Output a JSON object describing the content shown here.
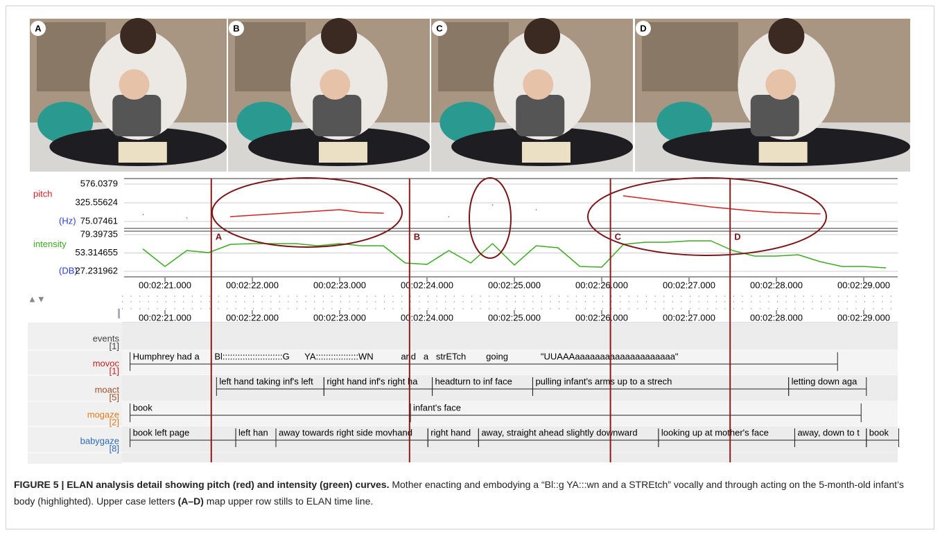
{
  "photos": [
    {
      "label": "A"
    },
    {
      "label": "B"
    },
    {
      "label": "C"
    },
    {
      "label": "D"
    }
  ],
  "timeline": {
    "xlim": [
      20.53,
      29.4
    ],
    "xticks": [
      {
        "value": 21,
        "label": "00:02:21.000"
      },
      {
        "value": 22,
        "label": "00:02:22.000"
      },
      {
        "value": 23,
        "label": "00:02:23.000"
      },
      {
        "value": 24,
        "label": "00:02:24.000"
      },
      {
        "value": 25,
        "label": "00:02:25.000"
      },
      {
        "value": 26,
        "label": "00:02:26.000"
      },
      {
        "value": 27,
        "label": "00:02:27.000"
      },
      {
        "value": 28,
        "label": "00:02:28.000"
      },
      {
        "value": 29,
        "label": "00:02:29.000"
      }
    ],
    "markers": [
      {
        "time": 21.53,
        "label": "A"
      },
      {
        "time": 23.8,
        "label": "B"
      },
      {
        "time": 26.1,
        "label": "C"
      },
      {
        "time": 27.47,
        "label": "D"
      }
    ]
  },
  "chart_data": [
    {
      "type": "line",
      "ylabel": "pitch",
      "yunit": "(Hz)",
      "color": "#d42020",
      "x": [
        20.75,
        21,
        21.25,
        21.5,
        21.75,
        22,
        22.25,
        22.5,
        22.75,
        23,
        23.25,
        23.5,
        23.75,
        24,
        24.25,
        24.5,
        24.75,
        25,
        25.25,
        25.5,
        25.75,
        26,
        26.25,
        26.5,
        26.75,
        27,
        27.25,
        27.5,
        27.75,
        28,
        28.25,
        28.5,
        28.75,
        29,
        29.25
      ],
      "values": [
        167.8,
        null,
        121.5,
        null,
        140,
        158.6,
        177,
        195.7,
        214,
        232.8,
        195.7,
        186.4,
        null,
        null,
        140,
        null,
        297.7,
        null,
        232.8,
        null,
        null,
        null,
        418.3,
        381.2,
        344,
        307,
        270,
        242,
        214,
        195.7,
        186.4,
        177,
        null,
        null,
        null
      ],
      "ylim": [
        75.07461,
        576.0379
      ],
      "yticks": [
        75.07461,
        325.55624,
        576.0379
      ],
      "grid": true
    },
    {
      "type": "line",
      "ylabel": "intensity",
      "yunit": "(DB)",
      "color": "#3aaa20",
      "x": [
        20.75,
        21,
        21.25,
        21.5,
        21.75,
        22,
        22.25,
        22.5,
        22.75,
        23,
        23.25,
        23.5,
        23.75,
        24,
        24.25,
        24.5,
        24.75,
        25,
        25.25,
        25.5,
        25.75,
        26,
        26.25,
        26.5,
        26.75,
        27,
        27.25,
        27.5,
        27.75,
        28,
        28.25,
        28.5,
        28.75,
        29,
        29.25
      ],
      "values": [
        58.7,
        34.1,
        56.8,
        53.8,
        65.6,
        66.6,
        66.6,
        66.6,
        63.6,
        66.6,
        63.6,
        63.6,
        39.0,
        37.1,
        56.8,
        39.0,
        66.6,
        36.1,
        63.6,
        60.7,
        34.1,
        33.1,
        65.6,
        68.6,
        68.6,
        70.5,
        70.5,
        56.8,
        48.9,
        48.9,
        50.8,
        41.0,
        34.1,
        34.1,
        32.2
      ],
      "ylim": [
        27.231962,
        79.39735
      ],
      "yticks": [
        27.231962,
        53.314655,
        79.39735
      ],
      "grid": true
    }
  ],
  "tiers": [
    {
      "name": "events",
      "count": "[1]",
      "color": "#444444",
      "annotations": []
    },
    {
      "name": "movoc",
      "count": "[1]",
      "color": "#c42020",
      "annotations": [
        {
          "start": 20.6,
          "end": 28.7,
          "text": "Humphrey had a      Bl::::::::::::::::::::::::G      YA:::::::::::::::::WN           and   a   strETch        going             \"UUAAAaaaaaaaaaaaaaaaaaaaa\""
        }
      ]
    },
    {
      "name": "moact",
      "count": "[5]",
      "color": "#a0502a",
      "annotations": [
        {
          "start": 21.59,
          "end": 22.82,
          "text": "left hand taking inf's left"
        },
        {
          "start": 22.82,
          "end": 24.06,
          "text": "right hand inf's right ha"
        },
        {
          "start": 24.06,
          "end": 25.21,
          "text": "headturn to inf face"
        },
        {
          "start": 25.21,
          "end": 28.14,
          "text": "pulling infant's arms up to a strech"
        },
        {
          "start": 28.14,
          "end": 29.03,
          "text": "letting down aga"
        }
      ]
    },
    {
      "name": "mogaze",
      "count": "[2]",
      "color": "#e07a20",
      "annotations": [
        {
          "start": 20.6,
          "end": 23.81,
          "text": "book"
        },
        {
          "start": 23.81,
          "end": 28.97,
          "text": "infant's face"
        }
      ]
    },
    {
      "name": "babygaze",
      "count": "[8]",
      "color": "#2a6ab8",
      "annotations": [
        {
          "start": 20.6,
          "end": 21.81,
          "text": "book left page"
        },
        {
          "start": 21.81,
          "end": 22.27,
          "text": "left han"
        },
        {
          "start": 22.27,
          "end": 24.01,
          "text": "away towards right side movhand"
        },
        {
          "start": 24.01,
          "end": 24.59,
          "text": "right hand"
        },
        {
          "start": 24.59,
          "end": 26.65,
          "text": "away, straight ahead slightly downward"
        },
        {
          "start": 26.65,
          "end": 28.21,
          "text": "looking up at mother's face"
        },
        {
          "start": 28.21,
          "end": 29.03,
          "text": "away, down to t"
        },
        {
          "start": 29.03,
          "end": 29.4,
          "text": "book"
        }
      ]
    }
  ],
  "caption": {
    "title": "FIGURE 5 | ELAN analysis detail showing pitch (red) and intensity (green) curves.",
    "text_1": " Mother enacting and embodying a “Bl::g YA:::wn and a STREtch” vocally and through acting on the 5-month-old infant’s body (highlighted). Upper case letters ",
    "bold": "(A–D)",
    "text_2": " map upper row stills to ELAN time line."
  }
}
